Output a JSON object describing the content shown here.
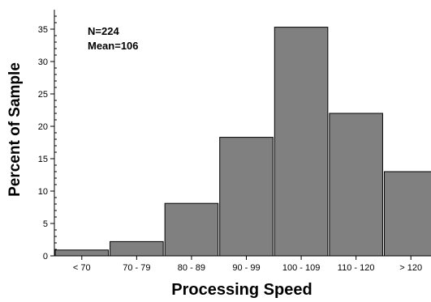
{
  "chart_data": {
    "type": "bar",
    "title": "",
    "xlabel": "Processing Speed",
    "ylabel": "Percent of Sample",
    "categories": [
      "< 70",
      "70 - 79",
      "80 - 89",
      "90 - 99",
      "100 - 109",
      "110 - 120",
      "> 120"
    ],
    "values": [
      0.9,
      2.2,
      8.1,
      18.3,
      35.3,
      22.0,
      13.0
    ],
    "ylim": [
      0,
      38
    ],
    "yticks": [
      0,
      5,
      10,
      15,
      20,
      25,
      30,
      35
    ],
    "grid": false,
    "annotations": [
      "N=224",
      "Mean=106"
    ],
    "colors": {
      "bar": "#808080",
      "bar_edge": "#000000",
      "axis": "#000000"
    }
  }
}
